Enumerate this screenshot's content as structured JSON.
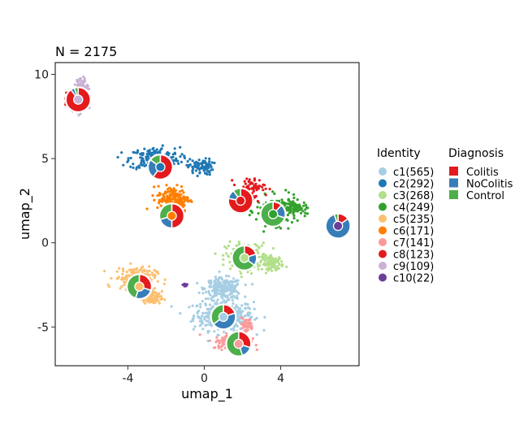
{
  "chart_data": {
    "type": "scatter",
    "title": "N = 2175",
    "xlabel": "umap_1",
    "ylabel": "umap_2",
    "xlim": [
      -7.8,
      8.1
    ],
    "ylim": [
      -7.3,
      10.7
    ],
    "x_ticks": [
      -4,
      0,
      4
    ],
    "x_tick_labels": [
      "-4",
      "0",
      "4"
    ],
    "y_ticks": [
      -5,
      0,
      5,
      10
    ],
    "y_tick_labels": [
      "-5",
      "0",
      "5",
      "10"
    ],
    "grid": false,
    "legend_position": "right",
    "identity_legend": {
      "title": "Identity",
      "items": [
        {
          "label": "c1(565)",
          "color": "#a6cee3"
        },
        {
          "label": "c2(292)",
          "color": "#1f78b4"
        },
        {
          "label": "c3(268)",
          "color": "#b2df8a"
        },
        {
          "label": "c4(249)",
          "color": "#33a02c"
        },
        {
          "label": "c5(235)",
          "color": "#fdbf6f"
        },
        {
          "label": "c6(171)",
          "color": "#ff7f00"
        },
        {
          "label": "c7(141)",
          "color": "#fb9a99"
        },
        {
          "label": "c8(123)",
          "color": "#e31a1c"
        },
        {
          "label": "c9(109)",
          "color": "#cab2d6"
        },
        {
          "label": "c10(22)",
          "color": "#6a3d9a"
        }
      ]
    },
    "diagnosis_legend": {
      "title": "Diagnosis",
      "items": [
        {
          "label": "Colitis",
          "color": "#e41a1c"
        },
        {
          "label": "NoColitis",
          "color": "#377eb8"
        },
        {
          "label": "Control",
          "color": "#4daf4a"
        }
      ]
    },
    "clusters": [
      {
        "name": "c1",
        "color": "#a6cee3",
        "n": 565,
        "regions": [
          {
            "cx": 1.0,
            "cy": -4.3,
            "sx": 1.3,
            "sy": 0.75,
            "w": 0.6
          },
          {
            "cx": 1.0,
            "cy": -2.7,
            "sx": 0.8,
            "sy": 0.5,
            "w": 0.4
          }
        ],
        "pie_center": [
          1.0,
          -4.4
        ],
        "pie": [
          0.2,
          0.45,
          0.35
        ]
      },
      {
        "name": "c2",
        "color": "#1f78b4",
        "n": 292,
        "regions": [
          {
            "cx": -2.6,
            "cy": 5.0,
            "sx": 1.1,
            "sy": 0.55,
            "w": 0.7
          },
          {
            "cx": -0.2,
            "cy": 4.5,
            "sx": 0.55,
            "sy": 0.4,
            "w": 0.3
          }
        ],
        "pie_center": [
          -2.3,
          4.5
        ],
        "pie": [
          0.6,
          0.25,
          0.15
        ]
      },
      {
        "name": "c3",
        "color": "#b2df8a",
        "n": 268,
        "regions": [
          {
            "cx": 2.2,
            "cy": -0.8,
            "sx": 0.9,
            "sy": 0.65,
            "w": 0.7
          },
          {
            "cx": 3.6,
            "cy": -1.2,
            "sx": 0.45,
            "sy": 0.35,
            "w": 0.3
          }
        ],
        "pie_center": [
          2.1,
          -0.9
        ],
        "pie": [
          0.2,
          0.15,
          0.65
        ]
      },
      {
        "name": "c4",
        "color": "#33a02c",
        "n": 249,
        "regions": [
          {
            "cx": 3.8,
            "cy": 1.9,
            "sx": 0.9,
            "sy": 0.7,
            "w": 0.8
          },
          {
            "cx": 4.8,
            "cy": 2.1,
            "sx": 0.45,
            "sy": 0.3,
            "w": 0.2
          }
        ],
        "pie_center": [
          3.6,
          1.7
        ],
        "pie": [
          0.12,
          0.18,
          0.7
        ]
      },
      {
        "name": "c5",
        "color": "#fdbf6f",
        "n": 235,
        "regions": [
          {
            "cx": -3.6,
            "cy": -2.1,
            "sx": 0.9,
            "sy": 0.55,
            "w": 0.7
          },
          {
            "cx": -2.7,
            "cy": -3.3,
            "sx": 0.4,
            "sy": 0.35,
            "w": 0.3
          }
        ],
        "pie_center": [
          -3.4,
          -2.6
        ],
        "pie": [
          0.3,
          0.25,
          0.45
        ]
      },
      {
        "name": "c6",
        "color": "#ff7f00",
        "n": 171,
        "regions": [
          {
            "cx": -1.6,
            "cy": 2.6,
            "sx": 0.7,
            "sy": 0.65,
            "w": 1.0
          }
        ],
        "pie_center": [
          -1.7,
          1.6
        ],
        "pie": [
          0.5,
          0.2,
          0.3
        ]
      },
      {
        "name": "c7",
        "color": "#fb9a99",
        "n": 141,
        "regions": [
          {
            "cx": 1.4,
            "cy": -5.9,
            "sx": 0.8,
            "sy": 0.35,
            "w": 0.7
          },
          {
            "cx": 2.2,
            "cy": -4.9,
            "sx": 0.3,
            "sy": 0.35,
            "w": 0.3
          }
        ],
        "pie_center": [
          1.8,
          -6.0
        ],
        "pie": [
          0.3,
          0.15,
          0.55
        ]
      },
      {
        "name": "c8",
        "color": "#e31a1c",
        "n": 123,
        "regions": [
          {
            "cx": 2.4,
            "cy": 3.2,
            "sx": 0.65,
            "sy": 0.55,
            "w": 0.6
          },
          {
            "cx": -6.9,
            "cy": 8.6,
            "sx": 0.3,
            "sy": 0.4,
            "w": 0.4
          }
        ],
        "pie_center": [
          1.9,
          2.5
        ],
        "pie": [
          0.78,
          0.12,
          0.1
        ]
      },
      {
        "name": "c9",
        "color": "#cab2d6",
        "n": 109,
        "regions": [
          {
            "cx": -6.4,
            "cy": 9.3,
            "sx": 0.25,
            "sy": 0.45,
            "w": 0.6
          },
          {
            "cx": -6.6,
            "cy": 8.1,
            "sx": 0.35,
            "sy": 0.35,
            "w": 0.4
          }
        ],
        "pie_center": [
          -6.6,
          8.5
        ],
        "pie": [
          0.9,
          0.05,
          0.05
        ]
      },
      {
        "name": "c10",
        "color": "#6a3d9a",
        "n": 22,
        "regions": [
          {
            "cx": 7.0,
            "cy": 1.0,
            "sx": 0.15,
            "sy": 0.15,
            "w": 0.5
          },
          {
            "cx": -1.0,
            "cy": -2.5,
            "sx": 0.1,
            "sy": 0.1,
            "w": 0.5
          }
        ],
        "pie_center": [
          7.0,
          1.0
        ],
        "pie": [
          0.15,
          0.8,
          0.05
        ]
      }
    ]
  }
}
